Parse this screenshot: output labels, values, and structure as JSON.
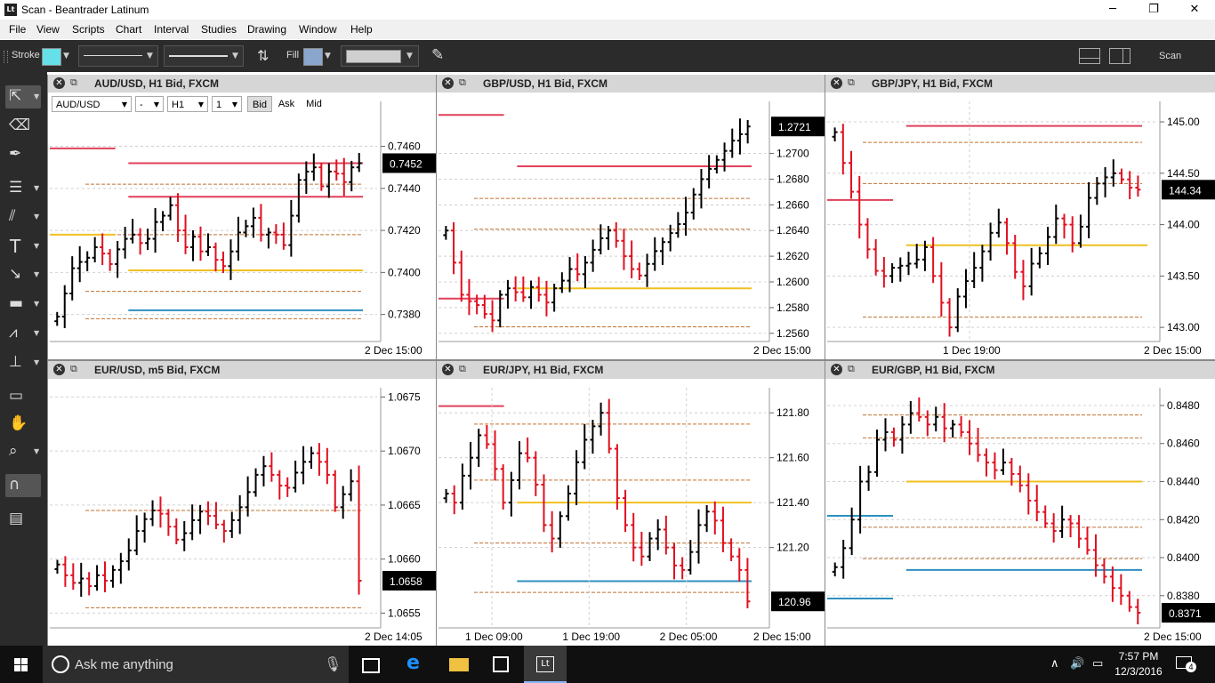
{
  "window": {
    "title": "Scan - Beantrader Latinum",
    "app_icon": "Lt",
    "minimize_icon": "minimize-icon",
    "maximize_icon": "restore-icon",
    "close_icon": "close-icon"
  },
  "menu": [
    "File",
    "View",
    "Scripts",
    "Chart",
    "Interval",
    "Studies",
    "Drawing",
    "Window",
    "Help"
  ],
  "toolbar": {
    "stroke_label": "Stroke",
    "stroke_color": "#66e0e8",
    "fill_label": "Fill",
    "fill_color": "#8aa6cc",
    "fill_box_color": "#cfcfcf",
    "scan_label": "Scan",
    "icons": [
      "swap-arrows-icon",
      "eraser-pin-icon",
      "layout-single-icon",
      "layout-split-icon"
    ]
  },
  "left_tools": [
    "pointer-icon",
    "eraser-icon",
    "pen-icon",
    "horizontal-lines-icon",
    "diagonal-lines-icon",
    "text-icon",
    "arrow-icon",
    "rectangle-icon",
    "wave-icon",
    "stamp-icon",
    "ruler-icon",
    "hand-icon",
    "zoom-icon",
    "magnet-icon",
    "chart-settings-icon"
  ],
  "panels": [
    {
      "title": "AUD/USD, H1 Bid, FXCM",
      "controls": {
        "symbol": "AUD/USD",
        "dash": "-",
        "interval": "H1",
        "count": "1",
        "bid": "Bid",
        "ask": "Ask",
        "mid": "Mid"
      },
      "chart_data": {
        "type": "ohlc",
        "price_ticks": [
          "0.7460",
          "0.7440",
          "0.7420",
          "0.7400",
          "0.7380"
        ],
        "ylim": [
          0.7368,
          0.7478
        ],
        "current_price": "0.7452",
        "current_value": 0.7452,
        "time_labels": [
          "2 Dec 15:00"
        ],
        "levels": [
          {
            "value": 0.7459,
            "color": "#e0405a",
            "kind": "solid",
            "span": "left"
          },
          {
            "value": 0.7452,
            "color": "#e0405a",
            "kind": "solid",
            "span": "right"
          },
          {
            "value": 0.7436,
            "color": "#e0405a",
            "kind": "solid",
            "span": "right"
          },
          {
            "value": 0.7418,
            "color": "#f0c020",
            "kind": "solid",
            "span": "left"
          },
          {
            "value": 0.7401,
            "color": "#f0c020",
            "kind": "solid",
            "span": "right"
          },
          {
            "value": 0.7382,
            "color": "#2e90c0",
            "kind": "solid",
            "span": "right"
          }
        ],
        "dashed_levels": [
          0.7442,
          0.7418,
          0.7391,
          0.7378
        ],
        "closes": [
          0.7379,
          0.739,
          0.7402,
          0.7405,
          0.7407,
          0.7412,
          0.7409,
          0.7404,
          0.7411,
          0.7416,
          0.7418,
          0.7414,
          0.7416,
          0.7424,
          0.7427,
          0.7432,
          0.742,
          0.7412,
          0.7417,
          0.741,
          0.7412,
          0.7406,
          0.7403,
          0.741,
          0.7419,
          0.7422,
          0.7426,
          0.7418,
          0.7419,
          0.7418,
          0.7413,
          0.7427,
          0.7444,
          0.7448,
          0.745,
          0.7441,
          0.7448,
          0.7447,
          0.7443,
          0.745,
          0.7452
        ]
      }
    },
    {
      "title": "GBP/USD, H1 Bid, FXCM",
      "chart_data": {
        "type": "ohlc",
        "price_ticks": [
          "1.2700",
          "1.2680",
          "1.2660",
          "1.2640",
          "1.2620",
          "1.2600",
          "1.2580",
          "1.2560"
        ],
        "ylim": [
          1.2555,
          1.2735
        ],
        "current_price": "1.2721",
        "current_value": 1.2721,
        "time_labels": [
          "2 Dec 15:00"
        ],
        "levels": [
          {
            "value": 1.273,
            "color": "#e0405a",
            "kind": "solid",
            "span": "left"
          },
          {
            "value": 1.269,
            "color": "#e0405a",
            "kind": "solid",
            "span": "right"
          },
          {
            "value": 1.2587,
            "color": "#e0405a",
            "kind": "solid",
            "span": "left"
          },
          {
            "value": 1.2595,
            "color": "#f0c020",
            "kind": "solid",
            "span": "right"
          }
        ],
        "dashed_levels": [
          1.2665,
          1.2641,
          1.2565
        ],
        "closes": [
          1.264,
          1.2615,
          1.259,
          1.2585,
          1.2582,
          1.2575,
          1.257,
          1.259,
          1.2595,
          1.2592,
          1.2588,
          1.2596,
          1.259,
          1.2584,
          1.2595,
          1.2601,
          1.261,
          1.2606,
          1.2615,
          1.2625,
          1.2634,
          1.264,
          1.2632,
          1.262,
          1.261,
          1.2605,
          1.2614,
          1.2624,
          1.2631,
          1.2638,
          1.2645,
          1.2654,
          1.2668,
          1.268,
          1.2688,
          1.2695,
          1.2702,
          1.271,
          1.2715,
          1.2721
        ]
      }
    },
    {
      "title": "GBP/JPY, H1 Bid, FXCM",
      "chart_data": {
        "type": "ohlc",
        "price_ticks": [
          "145.00",
          "144.50",
          "144.00",
          "143.50",
          "143.00"
        ],
        "ylim": [
          142.88,
          145.13
        ],
        "current_price": "144.34",
        "current_value": 144.34,
        "time_labels": [
          "1 Dec 19:00",
          "2 Dec 15:00"
        ],
        "levels": [
          {
            "value": 144.96,
            "color": "#e0405a",
            "kind": "solid",
            "span": "right"
          },
          {
            "value": 144.24,
            "color": "#e0405a",
            "kind": "solid",
            "span": "left"
          },
          {
            "value": 143.8,
            "color": "#f0c020",
            "kind": "solid",
            "span": "wide"
          }
        ],
        "dashed_levels": [
          144.8,
          144.4,
          143.1
        ],
        "closes": [
          144.9,
          144.6,
          144.32,
          144.0,
          143.76,
          143.55,
          143.5,
          143.58,
          143.6,
          143.62,
          143.66,
          143.78,
          143.5,
          143.24,
          143.0,
          143.3,
          143.45,
          143.58,
          143.74,
          143.92,
          144.02,
          143.82,
          143.54,
          143.4,
          143.62,
          143.72,
          143.88,
          144.06,
          144.0,
          143.82,
          143.98,
          144.26,
          144.4,
          144.46,
          144.5,
          144.44,
          144.36,
          144.34
        ]
      }
    },
    {
      "title": "EUR/USD, m5 Bid, FXCM",
      "chart_data": {
        "type": "ohlc",
        "price_ticks": [
          "1.0675",
          "1.0670",
          "1.0665",
          "1.0660",
          "1.0655"
        ],
        "ylim": [
          1.06538,
          1.06752
        ],
        "current_price": "1.0658",
        "current_value": 1.0658,
        "time_labels": [
          "2 Dec 14:05"
        ],
        "levels": [],
        "dashed_levels": [
          1.06645,
          1.06555
        ],
        "closes": [
          1.06595,
          1.06585,
          1.06578,
          1.06582,
          1.06575,
          1.06585,
          1.0658,
          1.0659,
          1.06598,
          1.06608,
          1.06626,
          1.06637,
          1.06645,
          1.06642,
          1.0663,
          1.06618,
          1.06624,
          1.06636,
          1.06644,
          1.0664,
          1.06632,
          1.06626,
          1.06636,
          1.06648,
          1.06662,
          1.06678,
          1.06686,
          1.06678,
          1.06668,
          1.06666,
          1.0668,
          1.0669,
          1.06698,
          1.0669,
          1.06678,
          1.06648,
          1.0666,
          1.06672,
          1.0658
        ]
      }
    },
    {
      "title": "EUR/JPY, H1 Bid, FXCM",
      "chart_data": {
        "type": "ohlc",
        "price_ticks": [
          "121.80",
          "121.60",
          "121.40",
          "121.20"
        ],
        "ylim": [
          120.85,
          121.88
        ],
        "current_price": "120.96",
        "current_value": 120.96,
        "time_labels": [
          "1 Dec 09:00",
          "1 Dec 19:00",
          "2 Dec 05:00",
          "2 Dec 15:00"
        ],
        "levels": [
          {
            "value": 121.83,
            "color": "#e0405a",
            "kind": "solid",
            "span": "left"
          },
          {
            "value": 121.4,
            "color": "#f0c020",
            "kind": "solid",
            "span": "right"
          },
          {
            "value": 121.05,
            "color": "#2e90c0",
            "kind": "solid",
            "span": "right"
          }
        ],
        "dashed_levels": [
          121.75,
          121.5,
          121.22,
          121.0
        ],
        "closes": [
          121.44,
          121.4,
          121.52,
          121.6,
          121.7,
          121.66,
          121.55,
          121.4,
          121.5,
          121.62,
          121.6,
          121.48,
          121.3,
          121.24,
          121.34,
          121.44,
          121.58,
          121.68,
          121.74,
          121.8,
          121.64,
          121.42,
          121.3,
          121.2,
          121.16,
          121.24,
          121.28,
          121.2,
          121.12,
          121.1,
          121.18,
          121.3,
          121.36,
          121.32,
          121.22,
          121.16,
          121.1,
          120.96
        ]
      }
    },
    {
      "title": "EUR/GBP, H1 Bid, FXCM",
      "chart_data": {
        "type": "ohlc",
        "price_ticks": [
          "0.8480",
          "0.8460",
          "0.8440",
          "0.8420",
          "0.8400",
          "0.8380"
        ],
        "ylim": [
          0.8364,
          0.84856
        ],
        "current_price": "0.8371",
        "current_value": 0.8371,
        "time_labels": [
          "2 Dec 15:00"
        ],
        "levels": [
          {
            "value": 0.8422,
            "color": "#2e90c0",
            "kind": "solid",
            "span": "left"
          },
          {
            "value": 0.844,
            "color": "#f0c020",
            "kind": "solid",
            "span": "right"
          },
          {
            "value": 0.83935,
            "color": "#2e90c0",
            "kind": "solid",
            "span": "right"
          },
          {
            "value": 0.83785,
            "color": "#2e90c0",
            "kind": "solid",
            "span": "left"
          }
        ],
        "dashed_levels": [
          0.8475,
          0.8463,
          0.8416,
          0.83995
        ],
        "closes": [
          0.8395,
          0.8405,
          0.842,
          0.844,
          0.8445,
          0.8462,
          0.8466,
          0.8462,
          0.847,
          0.8476,
          0.8474,
          0.847,
          0.8474,
          0.8468,
          0.847,
          0.8466,
          0.846,
          0.8454,
          0.845,
          0.8446,
          0.845,
          0.8444,
          0.8438,
          0.843,
          0.8424,
          0.8418,
          0.8414,
          0.842,
          0.8418,
          0.841,
          0.8404,
          0.8396,
          0.839,
          0.8384,
          0.838,
          0.8374,
          0.8371
        ]
      }
    }
  ],
  "taskbar": {
    "search_placeholder": "Ask me anything",
    "time": "7:57 PM",
    "date": "12/3/2016",
    "notification_count": "4",
    "apps": [
      "task-view-icon",
      "edge-icon",
      "file-explorer-icon",
      "store-icon",
      "latinum-app-icon"
    ]
  },
  "colors": {
    "up_bar": "#000000",
    "down_bar": "#e01020",
    "grid": "#d0d0d0",
    "dashed_level": "#c07030"
  }
}
